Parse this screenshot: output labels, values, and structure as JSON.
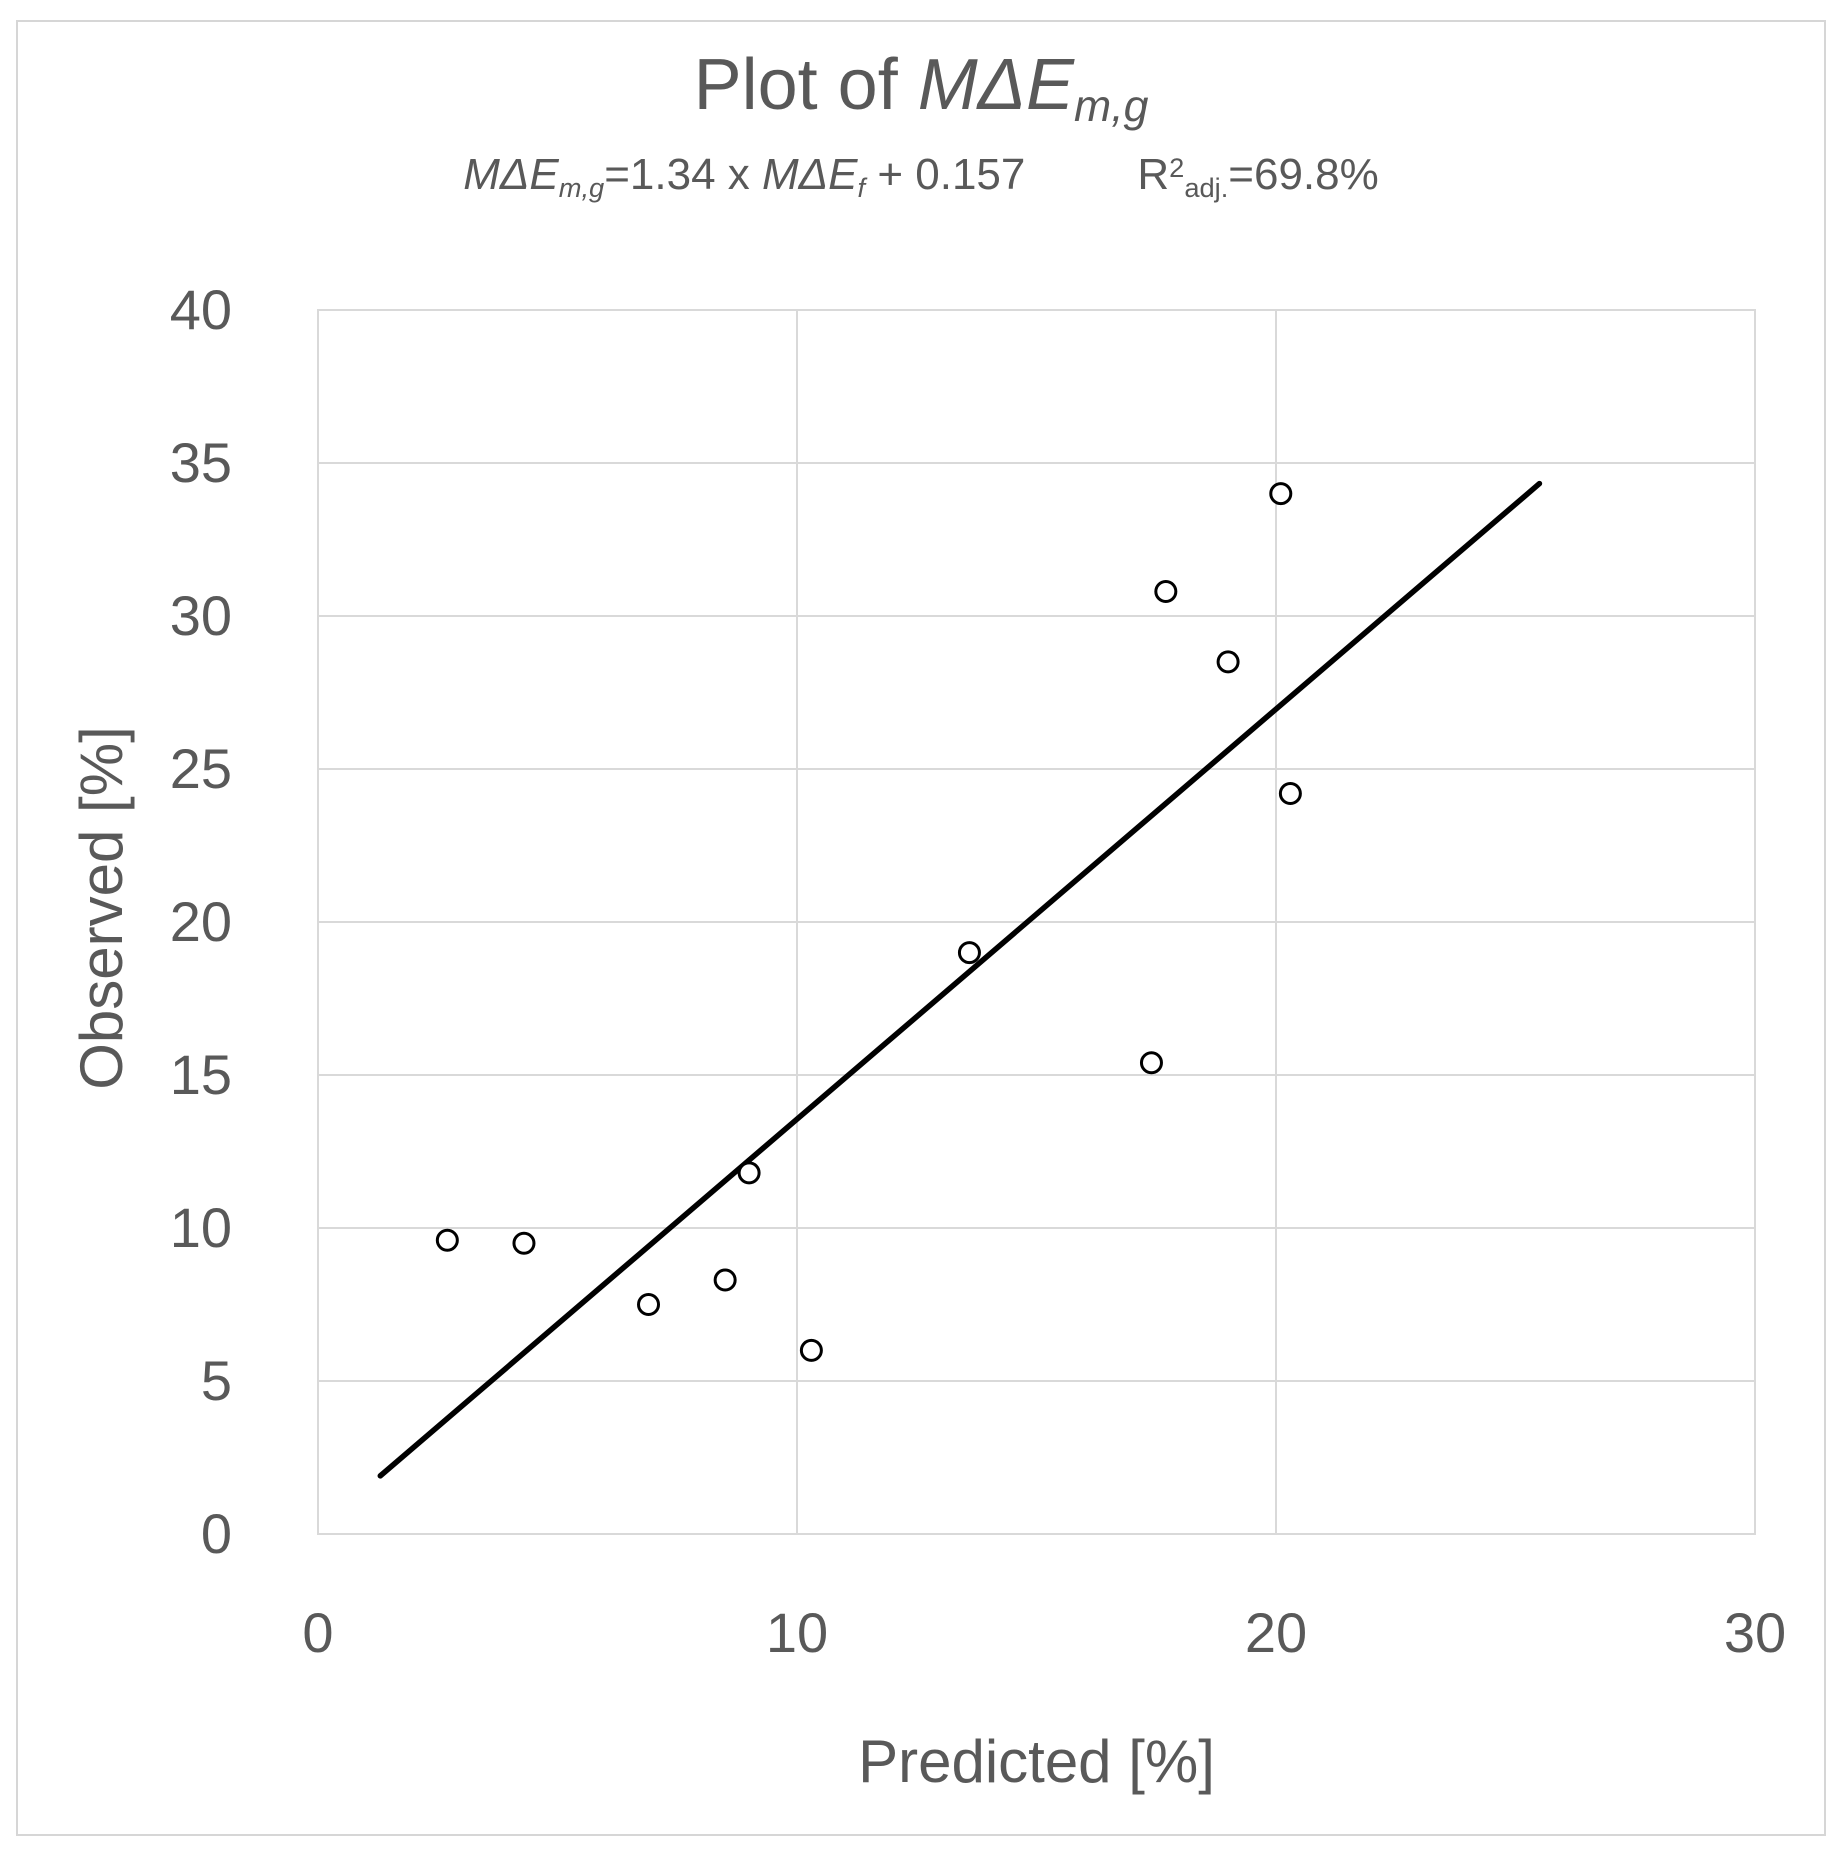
{
  "figure": {
    "title": {
      "prefix": "Plot of ",
      "var": "MΔE",
      "sub": "m,g"
    },
    "subtitle": {
      "lhs_var": "MΔE",
      "lhs_sub": "m,g",
      "mid": "=1.34 x ",
      "rhs_var": "MΔE",
      "rhs_sub": "f",
      "tail": " + 0.157",
      "r2_base": "R",
      "r2_sup": "2",
      "r2_sub": "adj.",
      "r2_val": "=69.8%"
    }
  },
  "chart_data": {
    "type": "scatter",
    "title": "Plot of MΔE_m,g",
    "subtitle": "MΔE_m,g=1.34 x MΔE_f + 0.157    R²_adj.=69.8%",
    "xlabel": "Predicted [%]",
    "ylabel": "Observed [%]",
    "xlim": [
      0,
      30
    ],
    "ylim": [
      0,
      40
    ],
    "x_ticks": [
      0,
      10,
      20,
      30
    ],
    "y_ticks": [
      0,
      5,
      10,
      15,
      20,
      25,
      30,
      35,
      40
    ],
    "grid": true,
    "legend": "none",
    "points": [
      {
        "x": 2.7,
        "y": 9.6
      },
      {
        "x": 4.3,
        "y": 9.5
      },
      {
        "x": 6.9,
        "y": 7.5
      },
      {
        "x": 8.5,
        "y": 8.3
      },
      {
        "x": 9.0,
        "y": 11.8
      },
      {
        "x": 10.3,
        "y": 6.0
      },
      {
        "x": 13.6,
        "y": 19.0
      },
      {
        "x": 17.4,
        "y": 15.4
      },
      {
        "x": 17.7,
        "y": 30.8
      },
      {
        "x": 19.0,
        "y": 28.5
      },
      {
        "x": 20.1,
        "y": 34.0
      },
      {
        "x": 20.3,
        "y": 24.2
      }
    ],
    "trendline": {
      "slope": 1.34,
      "intercept": 0.157,
      "x_start": 1.3,
      "x_end": 25.5
    },
    "r_squared_adj_pct": 69.8,
    "colors": {
      "text": "#595959",
      "grid": "#d9d9d9",
      "marker_stroke": "#000000",
      "marker_fill": "#ffffff",
      "trendline": "#000000"
    }
  }
}
